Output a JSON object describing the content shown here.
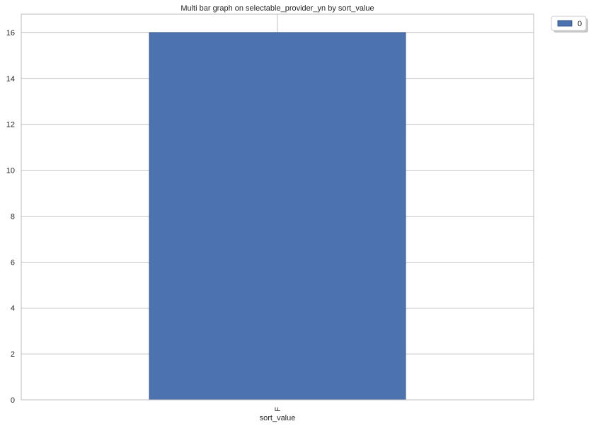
{
  "chart_data": {
    "type": "bar",
    "title": "Multi bar graph on selectable_provider_yn by sort_value",
    "xlabel": "sort_value",
    "ylabel": "",
    "categories": [
      "F"
    ],
    "series": [
      {
        "name": "0",
        "values": [
          16
        ]
      }
    ],
    "ylim": [
      0,
      16.8
    ],
    "yticks": [
      0,
      2,
      4,
      6,
      8,
      10,
      12,
      14,
      16
    ],
    "grid": true,
    "legend_position": "upper-right-outside",
    "colors": {
      "bar": "#4c72b0",
      "bar_edge": "#2b4a80",
      "grid": "#b0b0b0",
      "frame": "#bcbcbc",
      "text": "#262626"
    }
  }
}
